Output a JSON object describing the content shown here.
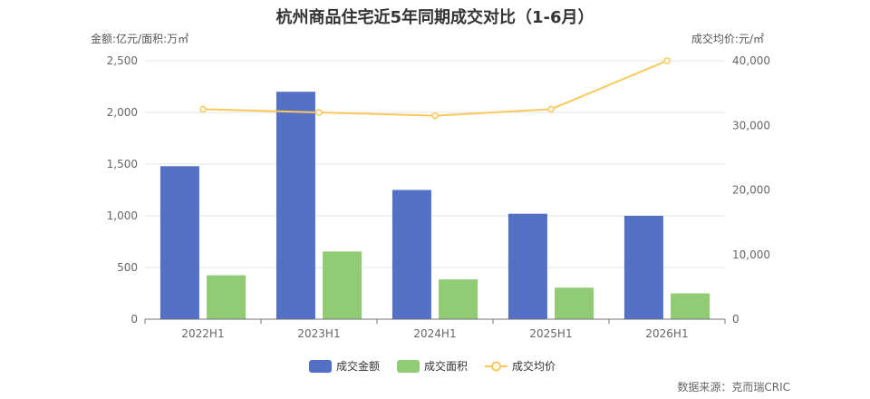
{
  "colors": {
    "amount": "#5470c6",
    "area": "#91cc75",
    "price": "#fac858",
    "grid": "#e3e6ee",
    "axis": "#6e7079"
  },
  "chart_data": {
    "type": "bar",
    "title": "杭州商品住宅近5年同期成交对比（1-6月）",
    "left_axis_unit": "金额:亿元/面积:万㎡",
    "right_axis_unit": "成交均价:元/㎡",
    "categories": [
      "2022H1",
      "2023H1",
      "2024H1",
      "2025H1",
      "2026H1"
    ],
    "left_ylim": [
      0,
      2500
    ],
    "left_ticks": [
      "0",
      "500",
      "1,000",
      "1,500",
      "2,000",
      "2,500"
    ],
    "right_ylim": [
      0,
      40000
    ],
    "right_ticks": [
      "0",
      "10,000",
      "20,000",
      "30,000",
      "40,000"
    ],
    "series": [
      {
        "name": "成交金额",
        "type": "bar",
        "axis": "left",
        "values": [
          1480,
          2200,
          1250,
          1020,
          1000
        ]
      },
      {
        "name": "成交面积",
        "type": "bar",
        "axis": "left",
        "values": [
          425,
          655,
          385,
          305,
          250
        ]
      },
      {
        "name": "成交均价",
        "type": "line",
        "axis": "right",
        "values": [
          32500,
          32000,
          31500,
          32500,
          40000
        ]
      }
    ],
    "grid": true,
    "legend_position": "bottom-center"
  },
  "source": "数据来源：克而瑞CRIC"
}
